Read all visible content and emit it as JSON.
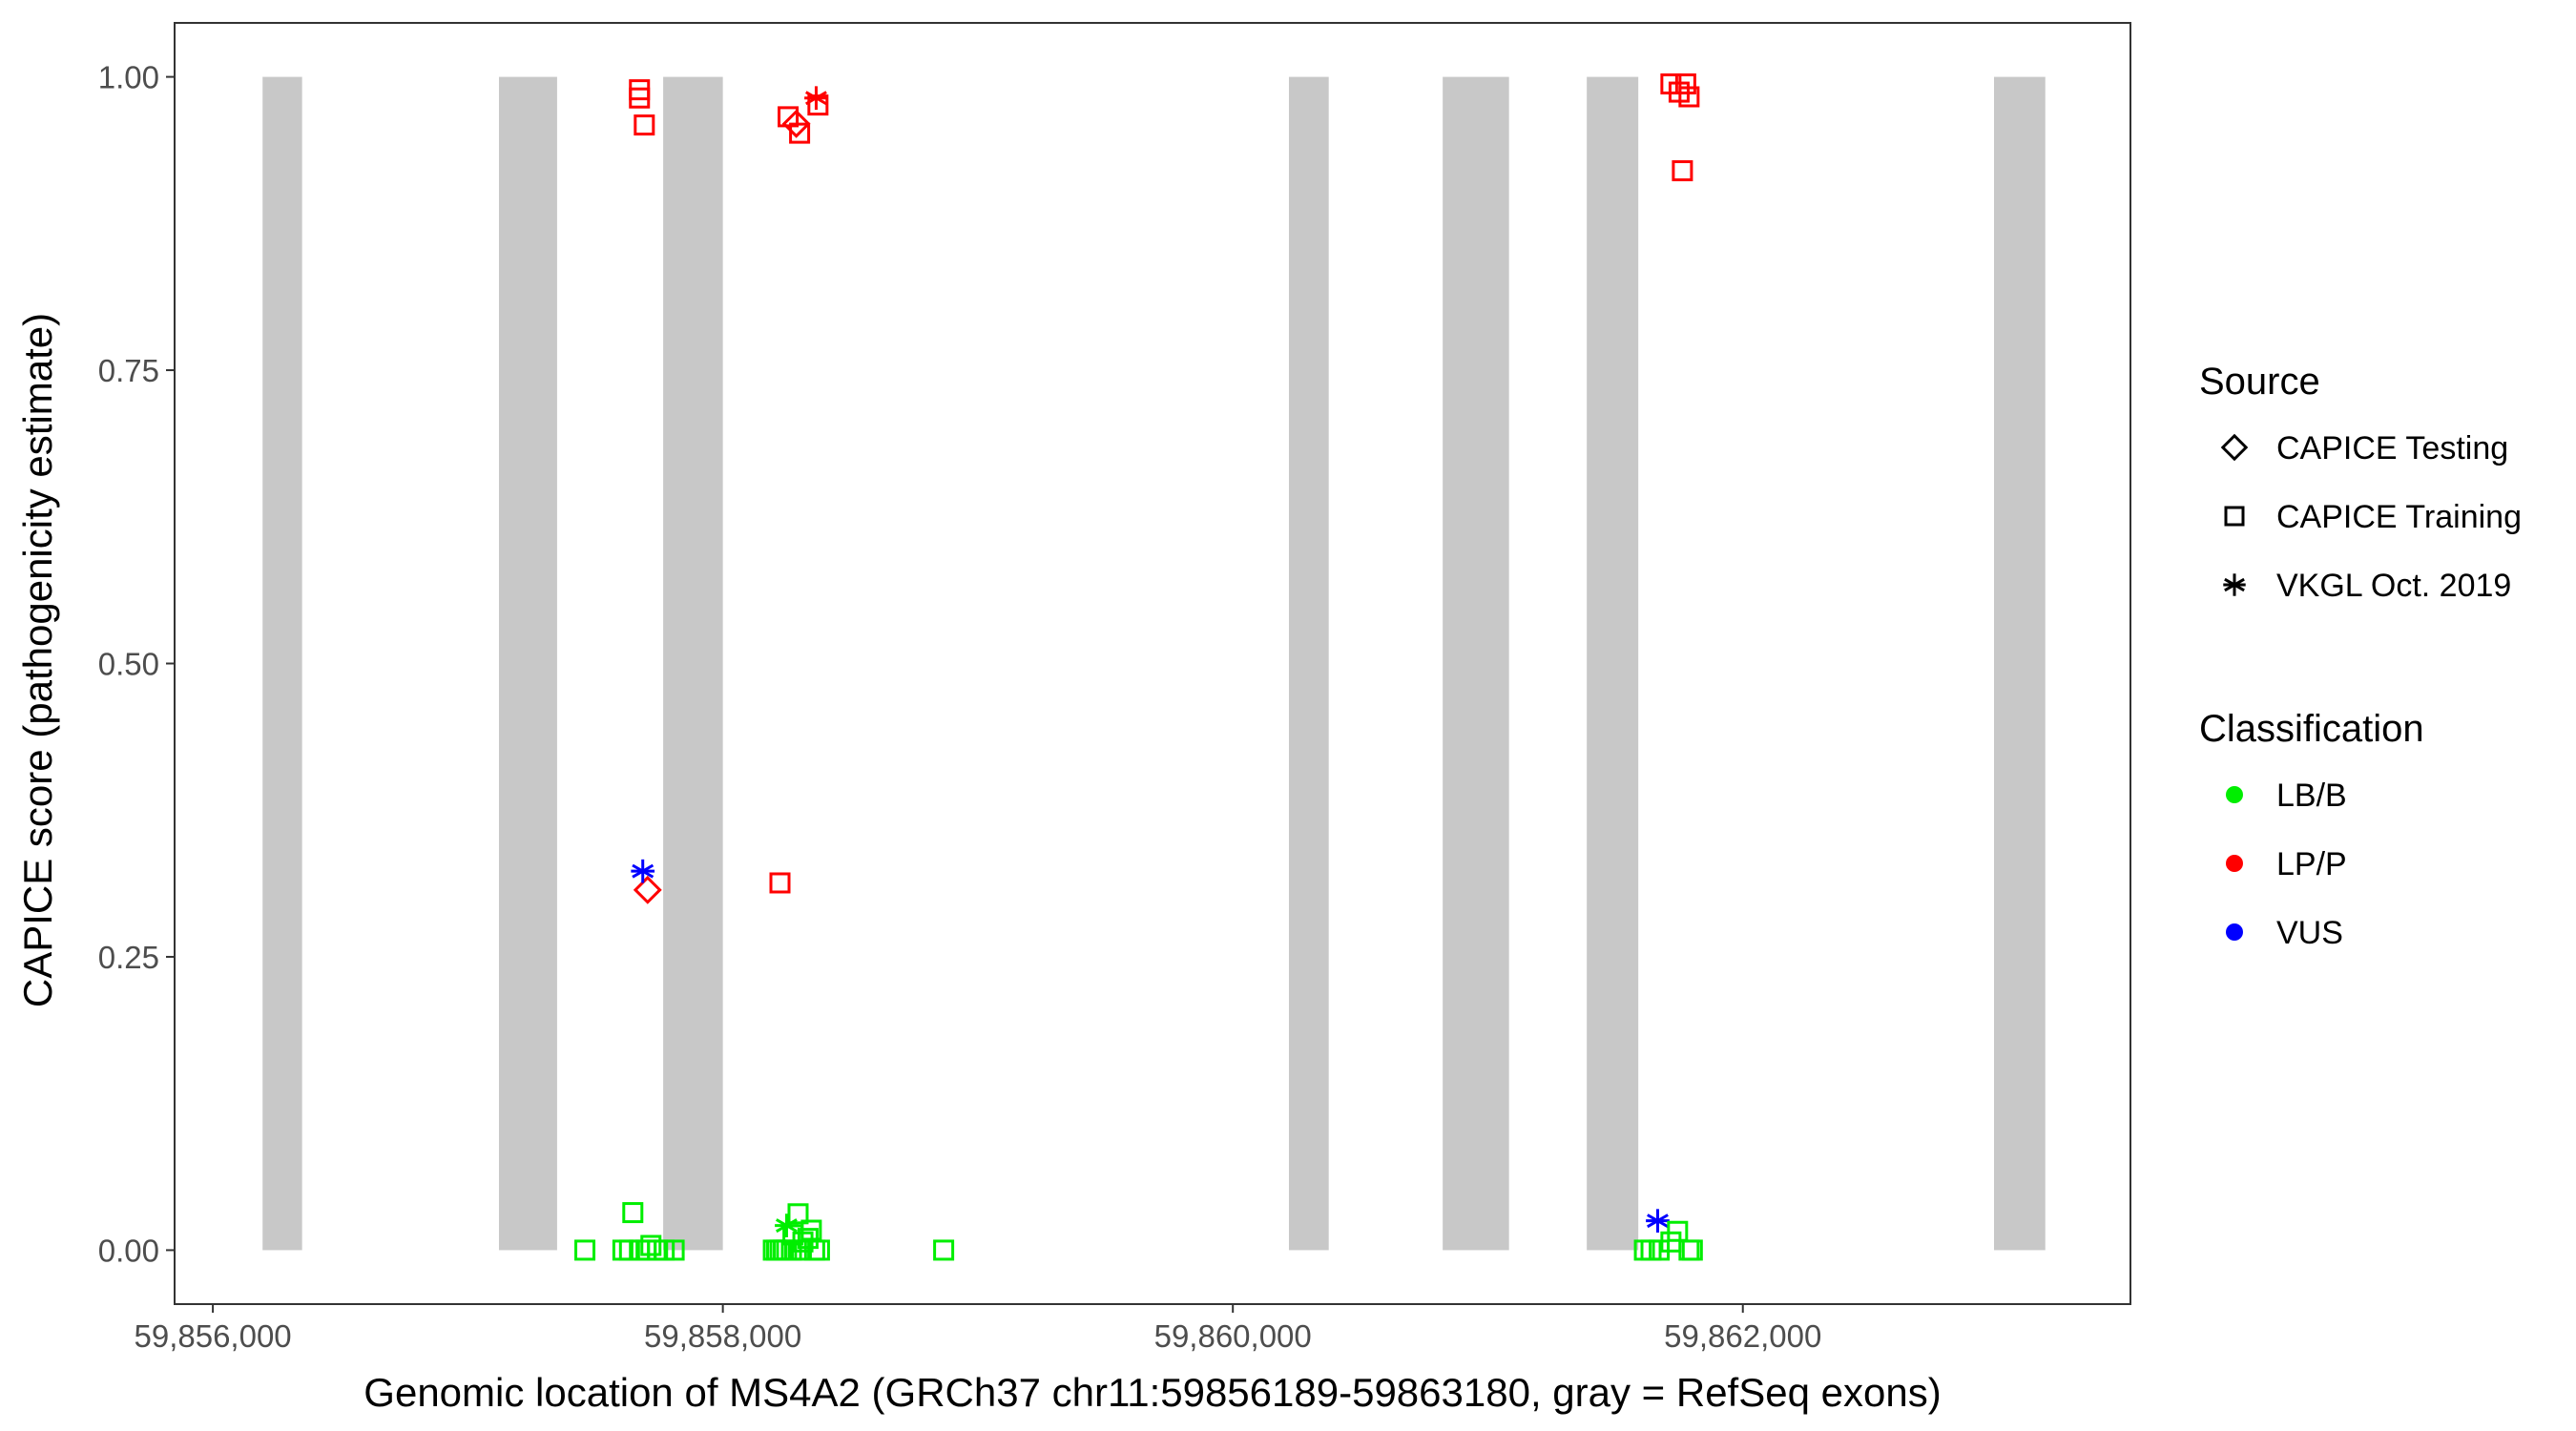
{
  "chart_data": {
    "type": "scatter",
    "title": "",
    "xlabel": "Genomic location of MS4A2 (GRCh37 chr11:59856189-59863180, gray = RefSeq exons)",
    "ylabel": "CAPICE score (pathogenicity estimate)",
    "xlim": [
      59855850,
      59863520
    ],
    "ylim": [
      -0.046,
      1.046
    ],
    "xticks": [
      59856000,
      59858000,
      59860000,
      59862000
    ],
    "xtick_labels": [
      "59,856,000",
      "59,858,000",
      "59,860,000",
      "59,862,000"
    ],
    "yticks": [
      0,
      0.25,
      0.5,
      0.75,
      1.0
    ],
    "ytick_labels": [
      "0.00",
      "0.25",
      "0.50",
      "0.75",
      "1.00"
    ],
    "grid": false,
    "exon_color": "#c8c8c8",
    "exons": [
      [
        59856195,
        59856350
      ],
      [
        59857122,
        59857350
      ],
      [
        59857766,
        59858000
      ],
      [
        59860220,
        59860376
      ],
      [
        59860823,
        59861083
      ],
      [
        59861388,
        59861590
      ],
      [
        59862985,
        59863186
      ]
    ],
    "legend": {
      "placement": "right",
      "source_title": "Source",
      "source_items": [
        {
          "label": "CAPICE Testing",
          "shape": "diamond"
        },
        {
          "label": "CAPICE Training",
          "shape": "square"
        },
        {
          "label": "VKGL Oct. 2019",
          "shape": "asterisk"
        }
      ],
      "class_title": "Classification",
      "class_items": [
        {
          "label": "LB/B",
          "color": "#00ee00"
        },
        {
          "label": "LP/P",
          "color": "#ff0000"
        },
        {
          "label": "VUS",
          "color": "#0000ff"
        }
      ]
    },
    "points": [
      {
        "x": 59857673,
        "y": 0.989,
        "source": "CAPICE Training",
        "class": "LP/P"
      },
      {
        "x": 59857673,
        "y": 0.982,
        "source": "CAPICE Training",
        "class": "LP/P"
      },
      {
        "x": 59857692,
        "y": 0.959,
        "source": "CAPICE Training",
        "class": "LP/P"
      },
      {
        "x": 59858256,
        "y": 0.966,
        "source": "CAPICE Training",
        "class": "LP/P"
      },
      {
        "x": 59858301,
        "y": 0.952,
        "source": "CAPICE Training",
        "class": "LP/P"
      },
      {
        "x": 59858373,
        "y": 0.976,
        "source": "CAPICE Training",
        "class": "LP/P"
      },
      {
        "x": 59858224,
        "y": 0.313,
        "source": "CAPICE Training",
        "class": "LP/P"
      },
      {
        "x": 59861718,
        "y": 0.994,
        "source": "CAPICE Training",
        "class": "LP/P"
      },
      {
        "x": 59861776,
        "y": 0.994,
        "source": "CAPICE Training",
        "class": "LP/P"
      },
      {
        "x": 59861750,
        "y": 0.987,
        "source": "CAPICE Training",
        "class": "LP/P"
      },
      {
        "x": 59861789,
        "y": 0.983,
        "source": "CAPICE Training",
        "class": "LP/P"
      },
      {
        "x": 59861763,
        "y": 0.92,
        "source": "CAPICE Training",
        "class": "LP/P"
      },
      {
        "x": 59858288,
        "y": 0.96,
        "source": "CAPICE Testing",
        "class": "LP/P"
      },
      {
        "x": 59857705,
        "y": 0.307,
        "source": "CAPICE Testing",
        "class": "LP/P"
      },
      {
        "x": 59858366,
        "y": 0.982,
        "source": "VKGL Oct. 2019",
        "class": "LP/P"
      },
      {
        "x": 59857686,
        "y": 0.323,
        "source": "VKGL Oct. 2019",
        "class": "VUS"
      },
      {
        "x": 59861666,
        "y": 0.025,
        "source": "VKGL Oct. 2019",
        "class": "VUS"
      },
      {
        "x": 59858250,
        "y": 0.021,
        "source": "VKGL Oct. 2019",
        "class": "LB/B"
      },
      {
        "x": 59857459,
        "y": 0.0,
        "source": "CAPICE Training",
        "class": "LB/B"
      },
      {
        "x": 59857647,
        "y": 0.032,
        "source": "CAPICE Training",
        "class": "LB/B"
      },
      {
        "x": 59857608,
        "y": 0.0,
        "source": "CAPICE Training",
        "class": "LB/B"
      },
      {
        "x": 59857634,
        "y": 0.0,
        "source": "CAPICE Training",
        "class": "LB/B"
      },
      {
        "x": 59857673,
        "y": 0.0,
        "source": "CAPICE Training",
        "class": "LB/B"
      },
      {
        "x": 59857699,
        "y": 0.0,
        "source": "CAPICE Training",
        "class": "LB/B"
      },
      {
        "x": 59857718,
        "y": 0.004,
        "source": "CAPICE Training",
        "class": "LB/B"
      },
      {
        "x": 59857744,
        "y": 0.0,
        "source": "CAPICE Training",
        "class": "LB/B"
      },
      {
        "x": 59857770,
        "y": 0.0,
        "source": "CAPICE Training",
        "class": "LB/B"
      },
      {
        "x": 59857809,
        "y": 0.0,
        "source": "CAPICE Training",
        "class": "LB/B"
      },
      {
        "x": 59858198,
        "y": 0.0,
        "source": "CAPICE Training",
        "class": "LB/B"
      },
      {
        "x": 59858211,
        "y": 0.0,
        "source": "CAPICE Training",
        "class": "LB/B"
      },
      {
        "x": 59858224,
        "y": 0.0,
        "source": "CAPICE Training",
        "class": "LB/B"
      },
      {
        "x": 59858237,
        "y": 0.0,
        "source": "CAPICE Training",
        "class": "LB/B"
      },
      {
        "x": 59858250,
        "y": 0.0,
        "source": "CAPICE Training",
        "class": "LB/B"
      },
      {
        "x": 59858269,
        "y": 0.0,
        "source": "CAPICE Training",
        "class": "LB/B"
      },
      {
        "x": 59858275,
        "y": 0.013,
        "source": "CAPICE Training",
        "class": "LB/B"
      },
      {
        "x": 59858295,
        "y": 0.031,
        "source": "CAPICE Training",
        "class": "LB/B"
      },
      {
        "x": 59858301,
        "y": 0.0,
        "source": "CAPICE Training",
        "class": "LB/B"
      },
      {
        "x": 59858314,
        "y": 0.007,
        "source": "CAPICE Training",
        "class": "LB/B"
      },
      {
        "x": 59858334,
        "y": 0.01,
        "source": "CAPICE Training",
        "class": "LB/B"
      },
      {
        "x": 59858347,
        "y": 0.017,
        "source": "CAPICE Training",
        "class": "LB/B"
      },
      {
        "x": 59858360,
        "y": 0.0,
        "source": "CAPICE Training",
        "class": "LB/B"
      },
      {
        "x": 59858379,
        "y": 0.0,
        "source": "CAPICE Training",
        "class": "LB/B"
      },
      {
        "x": 59858866,
        "y": 0.0,
        "source": "CAPICE Training",
        "class": "LB/B"
      },
      {
        "x": 59861614,
        "y": 0.0,
        "source": "CAPICE Training",
        "class": "LB/B"
      },
      {
        "x": 59861640,
        "y": 0.0,
        "source": "CAPICE Training",
        "class": "LB/B"
      },
      {
        "x": 59861672,
        "y": 0.0,
        "source": "CAPICE Training",
        "class": "LB/B"
      },
      {
        "x": 59861718,
        "y": 0.007,
        "source": "CAPICE Training",
        "class": "LB/B"
      },
      {
        "x": 59861744,
        "y": 0.016,
        "source": "CAPICE Training",
        "class": "LB/B"
      },
      {
        "x": 59861789,
        "y": 0.0,
        "source": "CAPICE Training",
        "class": "LB/B"
      },
      {
        "x": 59861802,
        "y": 0.0,
        "source": "CAPICE Training",
        "class": "LB/B"
      }
    ]
  }
}
